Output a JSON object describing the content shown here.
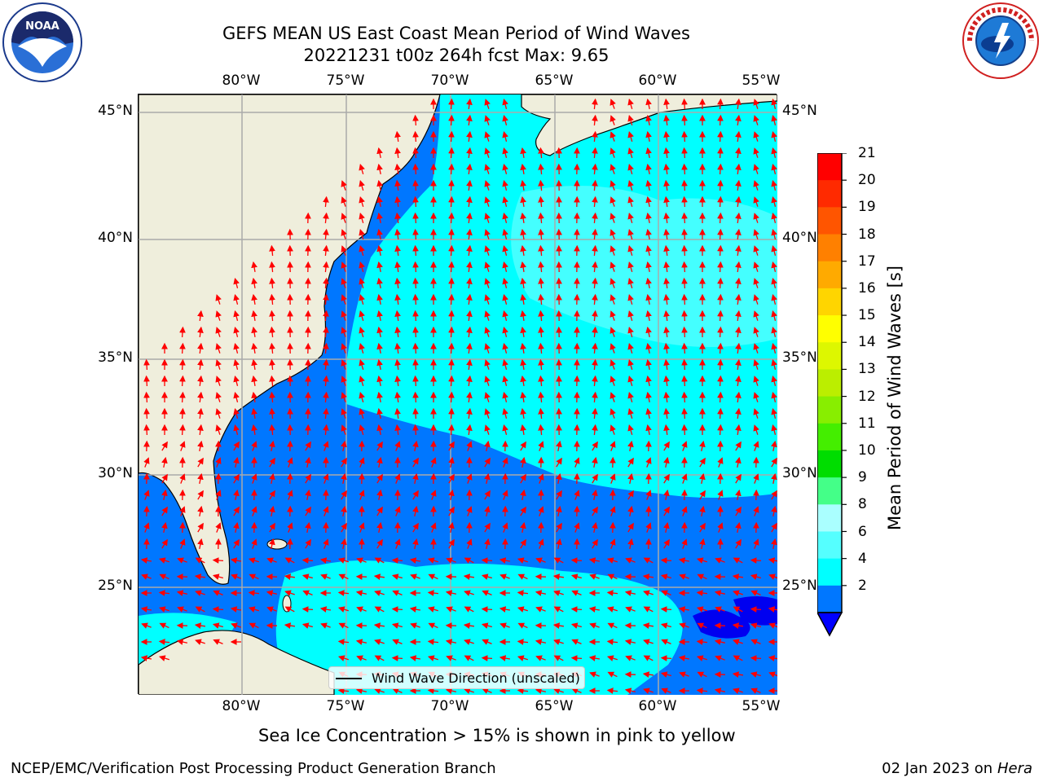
{
  "header": {
    "title_line1": "GEFS MEAN US East Coast Mean Period of Wind Waves",
    "title_line2": "20221231 t00z 264h fcst   Max: 9.65"
  },
  "logos": {
    "left": "noaa-logo",
    "right": "national-weather-service-logo"
  },
  "map": {
    "lon_ticks_top": [
      "80°W",
      "75°W",
      "70°W",
      "65°W",
      "60°W",
      "55°W"
    ],
    "lon_ticks_bottom": [
      "80°W",
      "75°W",
      "70°W",
      "65°W",
      "60°W",
      "55°W"
    ],
    "lat_ticks_left": [
      "45°N",
      "40°N",
      "35°N",
      "30°N",
      "25°N"
    ],
    "lat_ticks_right": [
      "45°N",
      "40°N",
      "35°N",
      "30°N",
      "25°N"
    ],
    "legend": "Wind Wave Direction (unscaled)",
    "colors": {
      "land": "#efeedc",
      "period_2_4": "#0077ff",
      "period_4_6": "#00ffff",
      "period_6_8": "#44ffff",
      "below_2": "#0000f0",
      "arrows": "#ff0000"
    }
  },
  "colorbar": {
    "label": "Mean Period of Wind Waves [s]",
    "ticks": [
      "21",
      "20",
      "19",
      "18",
      "17",
      "16",
      "15",
      "14",
      "13",
      "12",
      "11",
      "10",
      "9",
      "8",
      "6",
      "4",
      "2"
    ],
    "colors_top_to_bottom": [
      "#ff0000",
      "#ff2a00",
      "#ff5500",
      "#ff8000",
      "#ffaa00",
      "#ffd500",
      "#ffff00",
      "#ddf700",
      "#bbee00",
      "#88ee00",
      "#44ee00",
      "#00dd00",
      "#44ff88",
      "#aaffff",
      "#55ffff",
      "#00ffff",
      "#0077ff"
    ],
    "extend_color": "#0000ff"
  },
  "subnote": "Sea Ice Concentration > 15% is shown in pink to yellow",
  "footer": {
    "left": "NCEP/EMC/Verification Post Processing Product Generation Branch",
    "right_date": "02 Jan 2023 on",
    "right_host": "Hera"
  }
}
